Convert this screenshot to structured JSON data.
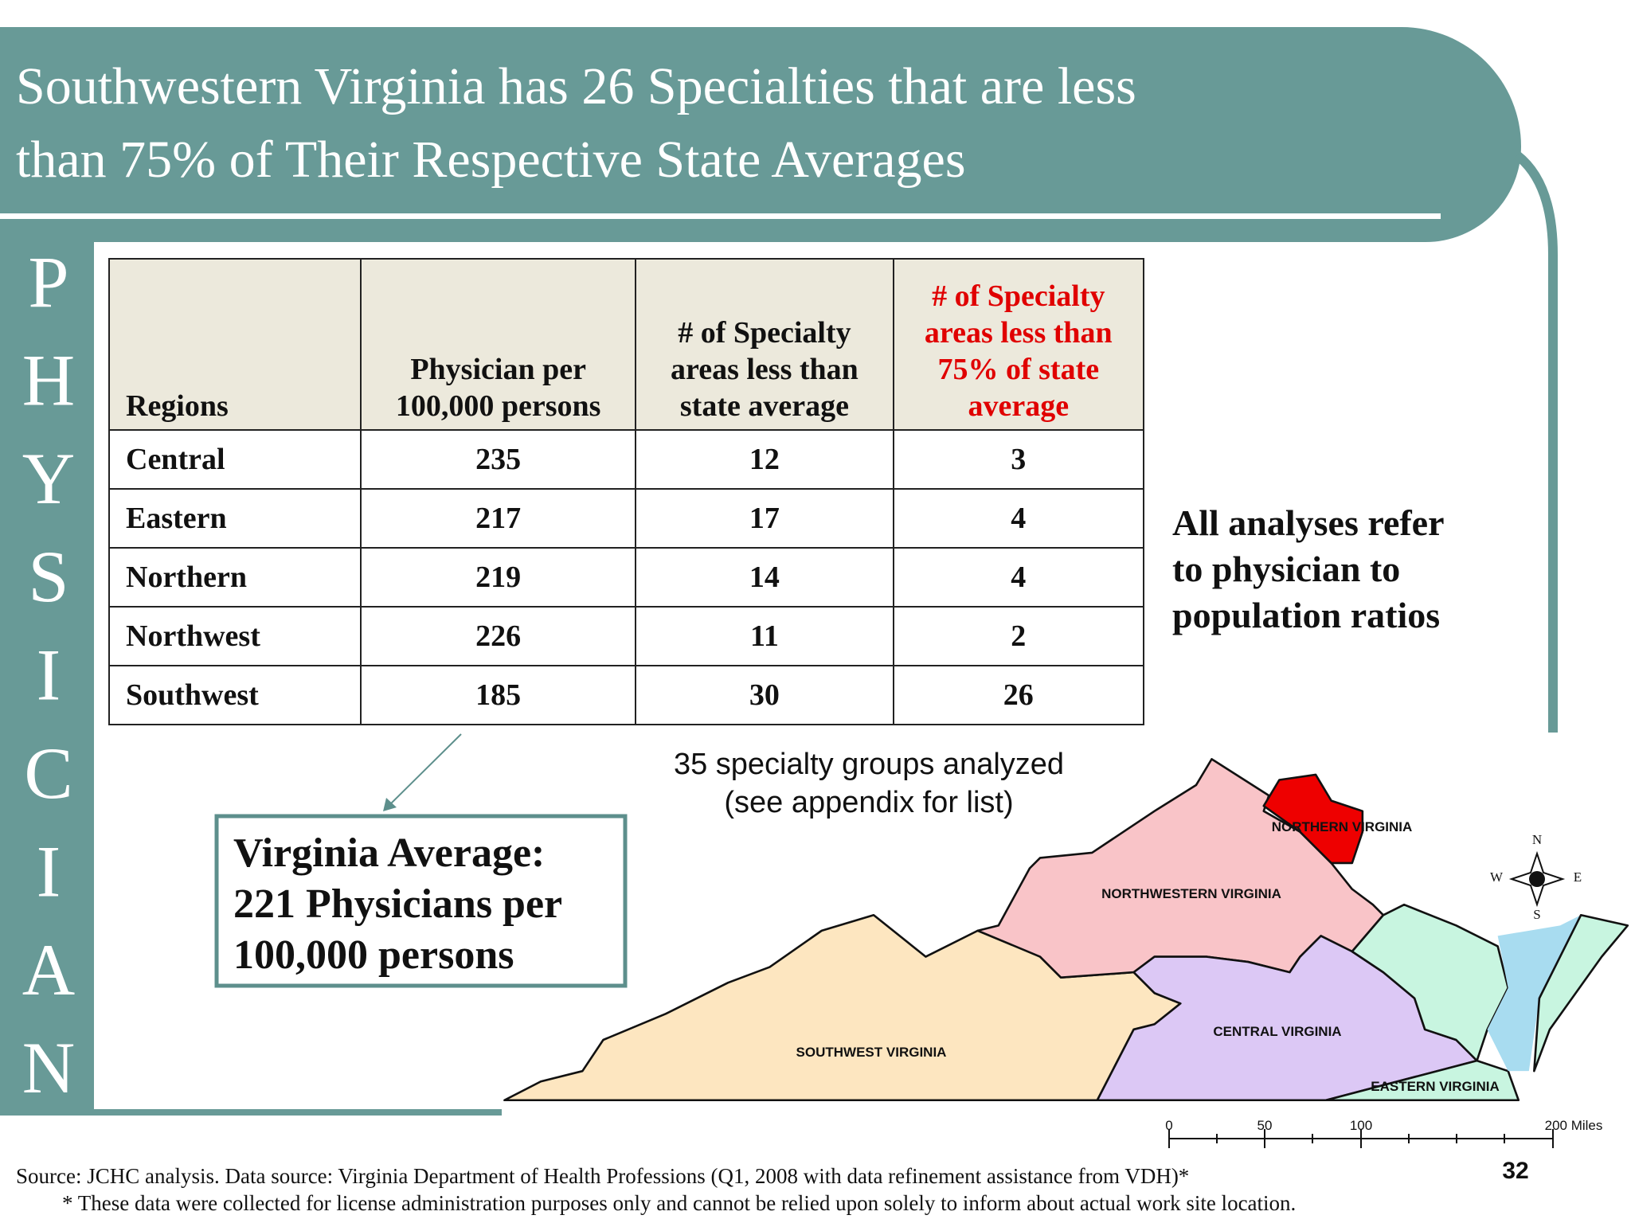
{
  "title_lines": [
    "Southwestern Virginia has 26 Specialties that are less",
    "than 75% of Their Respective State Averages"
  ],
  "side_label": [
    "P",
    "H",
    "Y",
    "S",
    "I",
    "C",
    "I",
    "A",
    "N"
  ],
  "table": {
    "header": [
      "Regions",
      "Physician per 100,000 persons",
      "# of Specialty areas less than state average",
      "# of Specialty areas less than 75% of state average"
    ],
    "rows": [
      [
        "Central",
        235,
        12,
        3
      ],
      [
        "Eastern",
        217,
        17,
        4
      ],
      [
        "Northern",
        219,
        14,
        4
      ],
      [
        "Northwest",
        226,
        11,
        2
      ],
      [
        "Southwest",
        185,
        30,
        26
      ]
    ]
  },
  "note_lines": [
    "All analyses refer",
    "to physician to",
    "population ratios"
  ],
  "specialty_note_lines": [
    "35 specialty groups analyzed",
    "(see appendix for list)"
  ],
  "average_box_lines": [
    "Virginia Average:",
    "221 Physicians per",
    "100,000 persons"
  ],
  "map": {
    "regions": [
      "NORTHERN VIRGINIA",
      "NORTHWESTERN VIRGINIA",
      "CENTRAL VIRGINIA",
      "SOUTHWEST VIRGINIA",
      "EASTERN VIRGINIA"
    ],
    "compass": [
      "N",
      "E",
      "S",
      "W"
    ],
    "scale": [
      "0",
      "50",
      "100",
      "200 Miles"
    ]
  },
  "source": "Source: JCHC analysis. Data source:  Virginia Department of Health Professions (Q1, 2008 with data refinement assistance from VDH)*",
  "footnote": "* These data were collected for license administration purposes only and cannot be relied upon solely to inform about actual work site location.",
  "page_number": "32"
}
